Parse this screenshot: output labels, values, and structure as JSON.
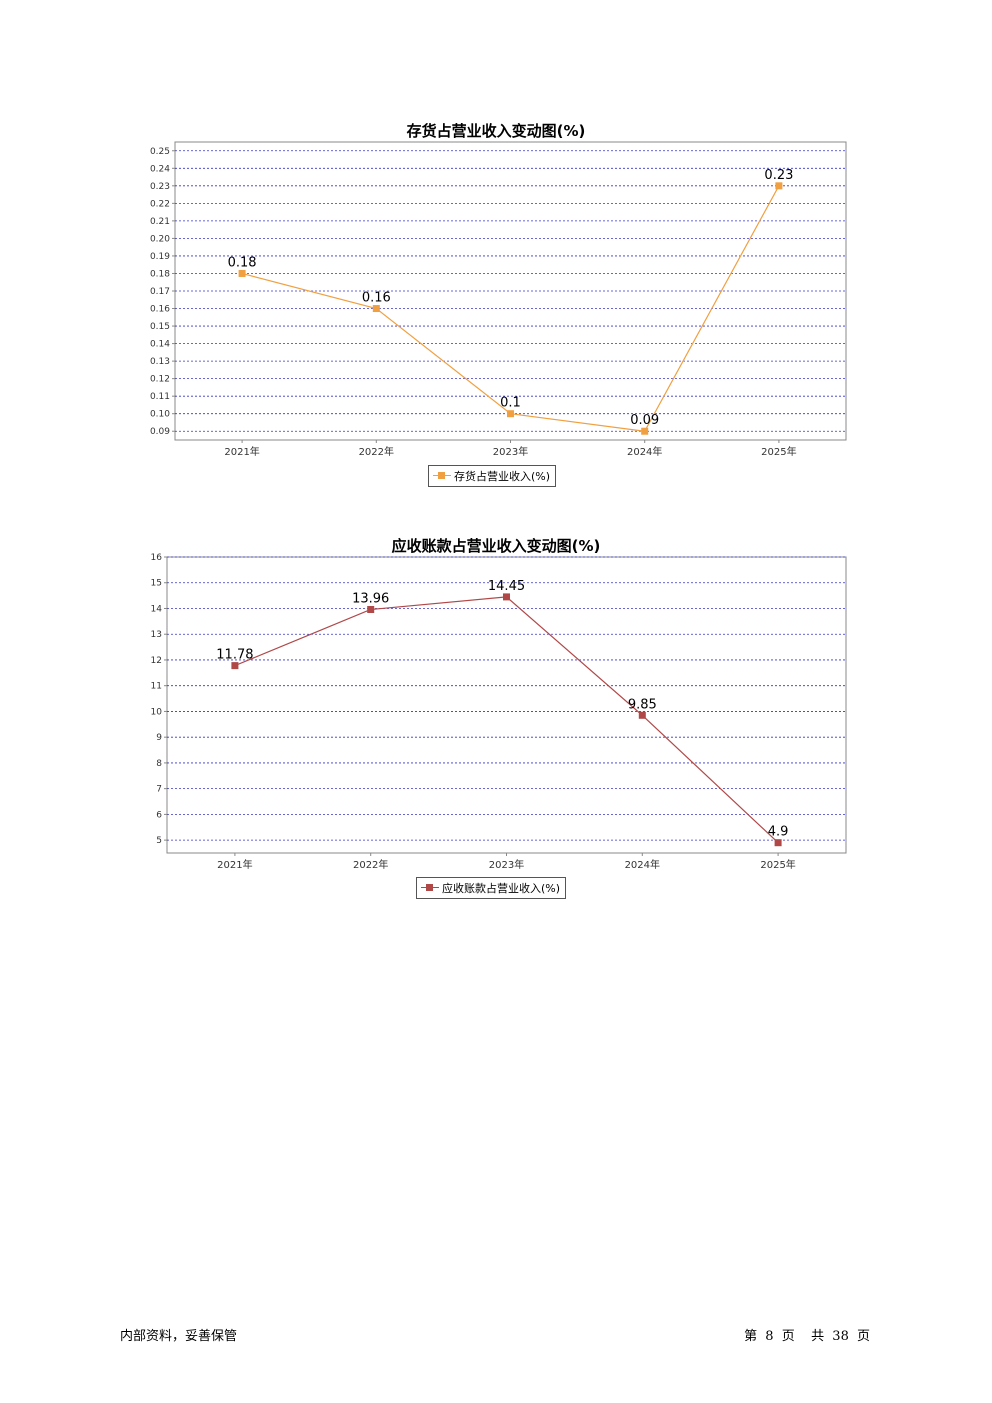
{
  "chart_data": [
    {
      "type": "line",
      "title": "存货占营业收入变动图(%)",
      "categories": [
        "2021年",
        "2022年",
        "2023年",
        "2024年",
        "2025年"
      ],
      "series": [
        {
          "name": "存货占营业收入(%)",
          "values": [
            0.18,
            0.16,
            0.1,
            0.09,
            0.23
          ],
          "labels": [
            "0.18",
            "0.16",
            "0.1",
            "0.09",
            "0.23"
          ],
          "color": "#f0a040"
        }
      ],
      "ylim": [
        0.085,
        0.255
      ],
      "yticks": [
        0.09,
        0.1,
        0.11,
        0.12,
        0.13,
        0.14,
        0.15,
        0.16,
        0.17,
        0.18,
        0.19,
        0.2,
        0.21,
        0.22,
        0.23,
        0.24,
        0.25
      ],
      "ytick_labels": [
        "0.09",
        "0.10",
        "0.11",
        "0.12",
        "0.13",
        "0.14",
        "0.15",
        "0.16",
        "0.17",
        "0.18",
        "0.19",
        "0.20",
        "0.21",
        "0.22",
        "0.23",
        "0.24",
        "0.25"
      ],
      "grid": true,
      "grid_color": "#3333cc",
      "legend_position": "bottom-center"
    },
    {
      "type": "line",
      "title": "应收账款占营业收入变动图(%)",
      "categories": [
        "2021年",
        "2022年",
        "2023年",
        "2024年",
        "2025年"
      ],
      "series": [
        {
          "name": "应收账款占营业收入(%)",
          "values": [
            11.78,
            13.96,
            14.45,
            9.85,
            4.9
          ],
          "labels": [
            "11.78",
            "13.96",
            "14.45",
            "9.85",
            "4.9"
          ],
          "color": "#b04848"
        }
      ],
      "ylim": [
        4.5,
        16.0
      ],
      "yticks": [
        5,
        6,
        7,
        8,
        9,
        10,
        11,
        12,
        13,
        14,
        15,
        16
      ],
      "ytick_labels": [
        "5",
        "6",
        "7",
        "8",
        "9",
        "10",
        "11",
        "12",
        "13",
        "14",
        "15",
        "16"
      ],
      "grid": true,
      "grid_color": "#3333cc",
      "legend_position": "bottom-center"
    }
  ],
  "footer": {
    "left": "内部资料，妥善保管",
    "page_prefix": "第",
    "page_number": "8",
    "page_suffix": "页",
    "total_prefix": "共",
    "total_pages": "38",
    "total_suffix": "页"
  }
}
